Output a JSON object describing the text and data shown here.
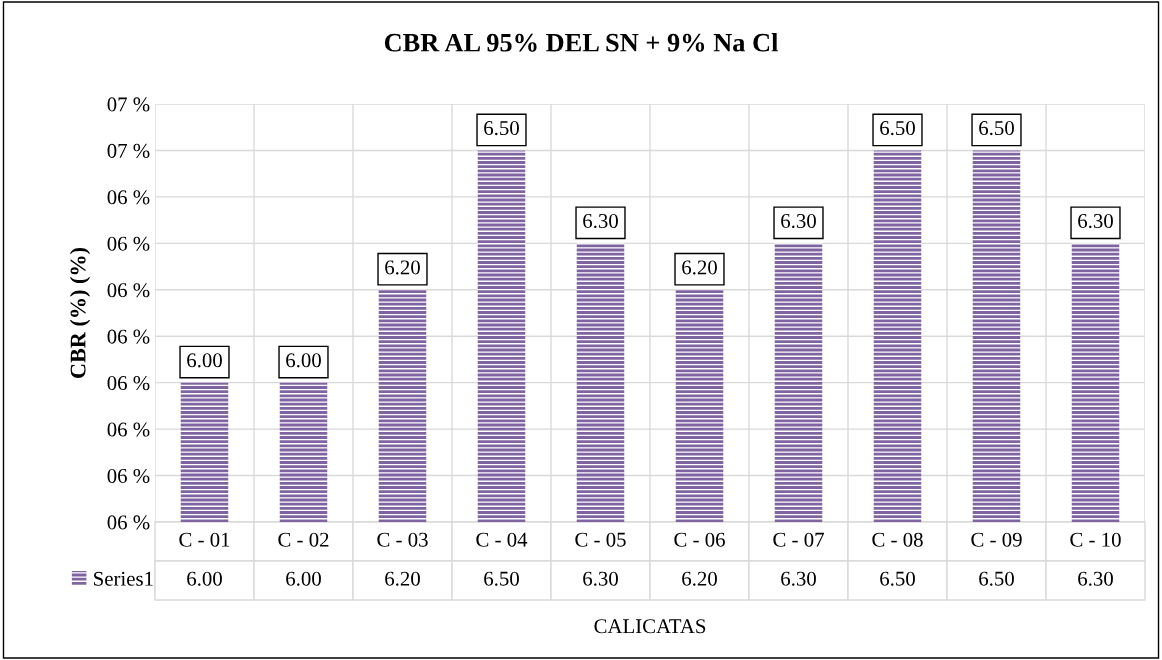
{
  "chart_data": {
    "type": "bar",
    "title": "CBR AL 95% DEL SN + 9% Na Cl",
    "xlabel": "CALICATAS",
    "ylabel": "CBR (%) (%)",
    "categories": [
      "C - 01",
      "C - 02",
      "C - 03",
      "C - 04",
      "C - 05",
      "C - 06",
      "C - 07",
      "C - 08",
      "C - 09",
      "C - 10"
    ],
    "series": [
      {
        "name": "Series1",
        "color": "#8064a2",
        "values": [
          6.0,
          6.0,
          6.2,
          6.5,
          6.3,
          6.2,
          6.3,
          6.5,
          6.5,
          6.3
        ],
        "value_labels": [
          "6.00",
          "6.00",
          "6.20",
          "6.50",
          "6.30",
          "6.20",
          "6.30",
          "6.50",
          "6.50",
          "6.30"
        ]
      }
    ],
    "ylim": [
      5.7,
      6.6
    ],
    "yticks": [
      {
        "value": 5.7,
        "label": "06 %"
      },
      {
        "value": 5.8,
        "label": "06 %"
      },
      {
        "value": 5.9,
        "label": "06 %"
      },
      {
        "value": 6.0,
        "label": "06 %"
      },
      {
        "value": 6.1,
        "label": "06 %"
      },
      {
        "value": 6.2,
        "label": "06 %"
      },
      {
        "value": 6.3,
        "label": "06 %"
      },
      {
        "value": 6.4,
        "label": "06 %"
      },
      {
        "value": 6.5,
        "label": "07 %"
      },
      {
        "value": 6.6,
        "label": "07 %"
      }
    ],
    "grid": "y",
    "legend": "bottom"
  }
}
